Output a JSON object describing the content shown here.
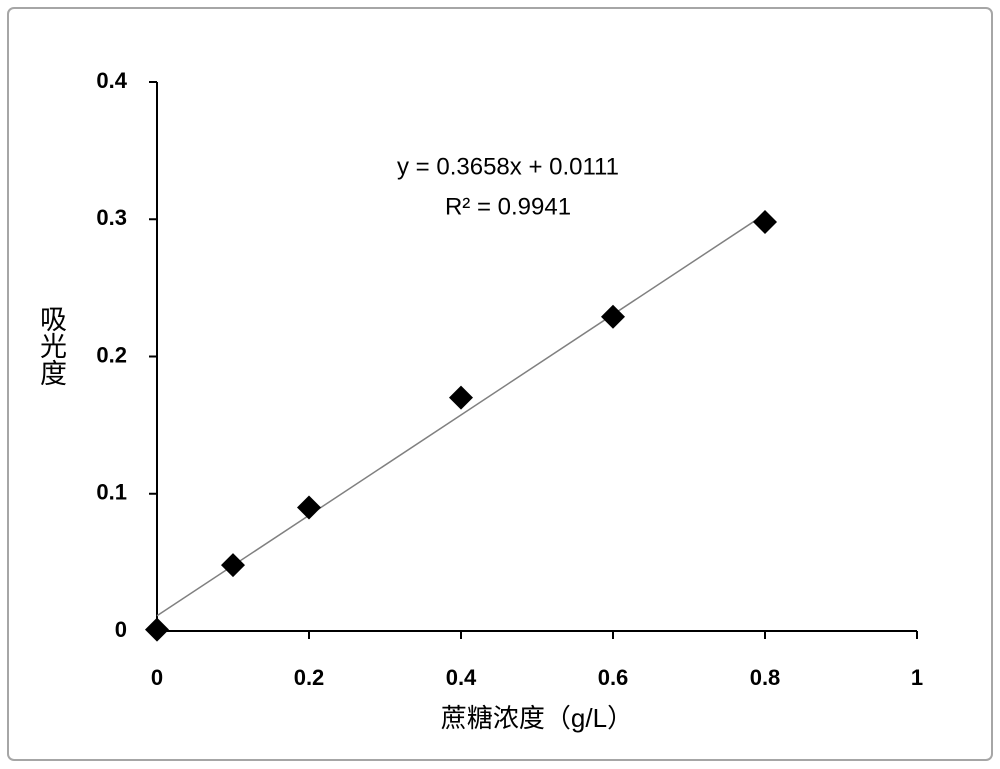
{
  "chart_data": {
    "type": "scatter",
    "x_label": "蔗糖浓度（g/L）",
    "y_label": "吸光度",
    "x": [
      0,
      0.1,
      0.2,
      0.4,
      0.6,
      0.8
    ],
    "series": [
      {
        "color": "#000000",
        "values": [
          0.001,
          0.048,
          0.09,
          0.17,
          0.229,
          0.298
        ]
      }
    ],
    "trendline": {
      "slope": 0.3658,
      "intercept": 0.0111,
      "equation": "y = 0.3658x + 0.0111",
      "r2": "R² = 0.9941",
      "color": "#808080"
    },
    "xlim": [
      0,
      1
    ],
    "xticks": [
      0,
      0.2,
      0.4,
      0.6,
      0.8,
      1
    ],
    "ylim": [
      0,
      0.4
    ],
    "yticks": [
      0,
      0.1,
      0.2,
      0.3,
      0.4
    ],
    "grid": false
  }
}
